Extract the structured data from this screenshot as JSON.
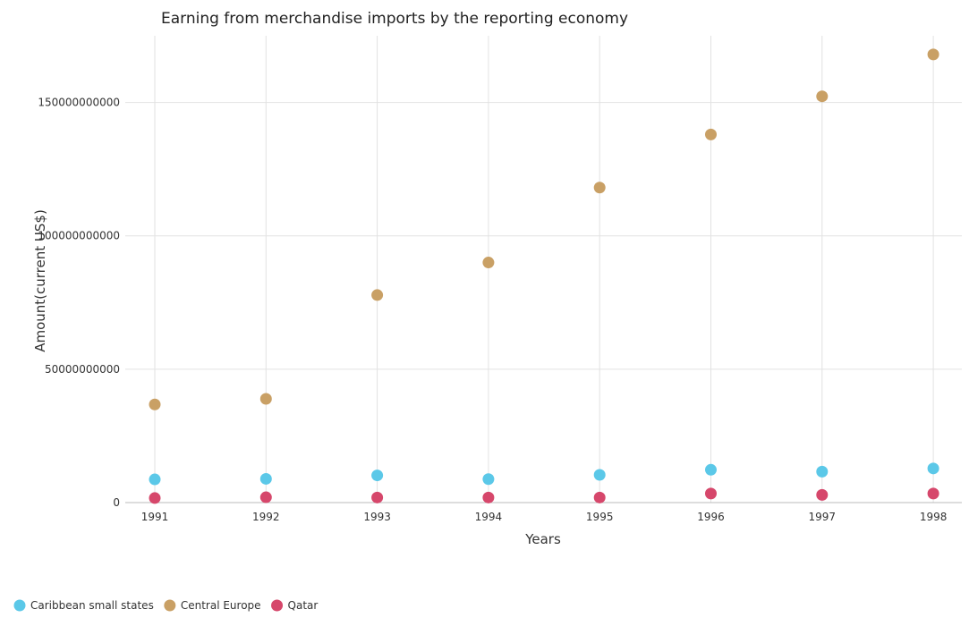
{
  "chart_data": {
    "type": "scatter",
    "title": "Earning from merchandise imports by the reporting economy",
    "xlabel": "Years",
    "ylabel": "Amount(current US$)",
    "categories": [
      "1991",
      "1992",
      "1993",
      "1994",
      "1995",
      "1996",
      "1997",
      "1998"
    ],
    "ylim": [
      0,
      175000000000
    ],
    "yticks": [
      0,
      50000000000,
      100000000000,
      150000000000
    ],
    "ytick_labels": [
      "0",
      "50000000000",
      "100000000000",
      "150000000000"
    ],
    "grid": true,
    "legend_position": "bottom-left",
    "series": [
      {
        "name": "Caribbean small states",
        "color": "#5bc8e8",
        "values": [
          8700000000,
          8900000000,
          10200000000,
          8800000000,
          10400000000,
          12300000000,
          11600000000,
          12800000000
        ]
      },
      {
        "name": "Central Europe",
        "color": "#c9a065",
        "values": [
          36800000000,
          38900000000,
          77800000000,
          90000000000,
          118100000000,
          138000000000,
          152300000000,
          168000000000
        ]
      },
      {
        "name": "Qatar",
        "color": "#d6476b",
        "values": [
          1700000000,
          2000000000,
          1900000000,
          1900000000,
          1900000000,
          3400000000,
          2900000000,
          3400000000
        ]
      }
    ]
  }
}
